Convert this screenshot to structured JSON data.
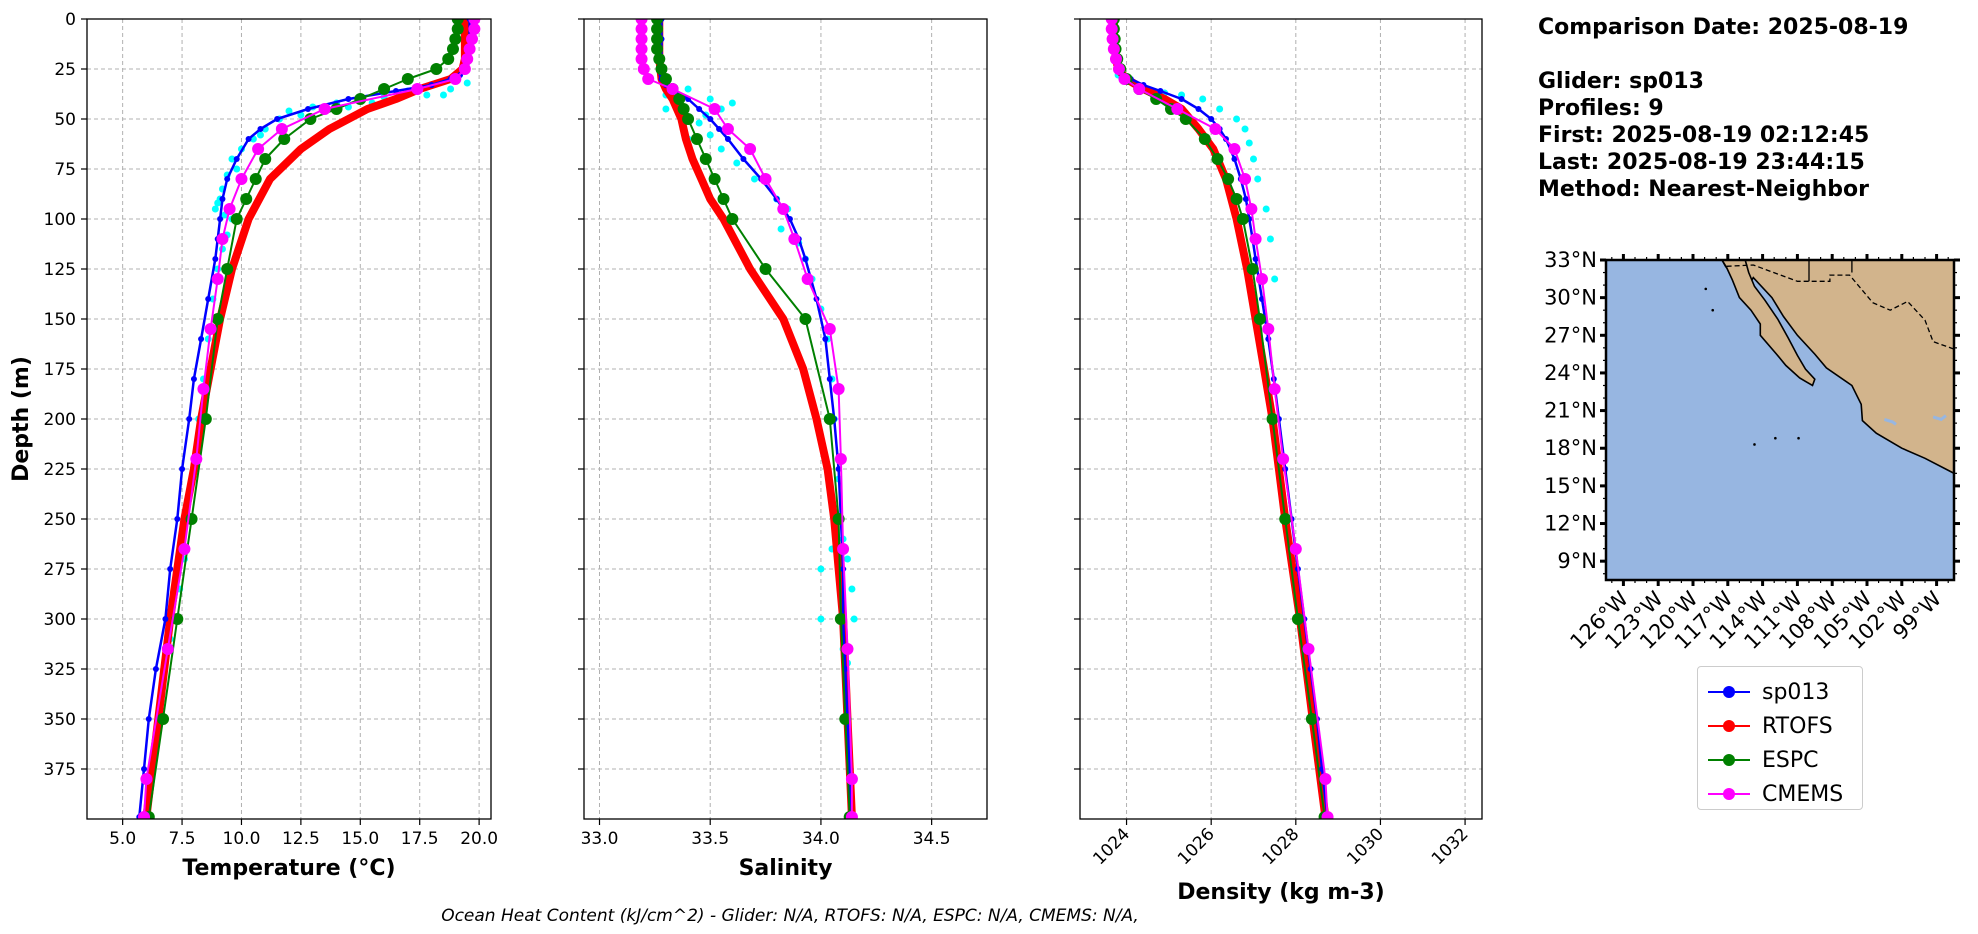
{
  "chart_data": [
    {
      "type": "line",
      "title": "",
      "xlabel": "Temperature (°C)",
      "ylabel": "Depth (m)",
      "xlim": [
        3.5,
        20.5
      ],
      "ylim": [
        400,
        0
      ],
      "xticks": [
        "5.0",
        "7.5",
        "10.0",
        "12.5",
        "15.0",
        "17.5",
        "20.0"
      ],
      "yticks": [
        "0",
        "25",
        "50",
        "75",
        "100",
        "125",
        "150",
        "175",
        "200",
        "225",
        "250",
        "275",
        "300",
        "325",
        "350",
        "375"
      ],
      "grid": true,
      "scatter_cyan": [
        [
          18.5,
          38
        ],
        [
          17.8,
          38
        ],
        [
          16.5,
          40
        ],
        [
          15.5,
          42
        ],
        [
          14,
          42
        ],
        [
          13,
          44
        ],
        [
          12,
          46
        ],
        [
          11.6,
          50
        ],
        [
          11,
          55
        ],
        [
          10.5,
          60
        ],
        [
          10,
          65
        ],
        [
          9.6,
          70
        ],
        [
          9.4,
          78
        ],
        [
          9.2,
          85
        ],
        [
          9,
          92
        ],
        [
          8.9,
          95
        ],
        [
          9.3,
          98
        ],
        [
          9.6,
          100
        ],
        [
          9.4,
          108
        ],
        [
          9.2,
          115
        ],
        [
          9,
          125
        ],
        [
          8.8,
          140
        ],
        [
          8.6,
          160
        ],
        [
          8.4,
          180
        ],
        [
          8.2,
          200
        ],
        [
          8,
          225
        ],
        [
          7.8,
          250
        ],
        [
          7.6,
          270
        ],
        [
          7.4,
          285
        ],
        [
          7.2,
          300
        ],
        [
          7,
          310
        ],
        [
          19,
          30
        ],
        [
          19.5,
          32
        ],
        [
          18.8,
          35
        ],
        [
          17,
          36
        ],
        [
          16,
          39
        ],
        [
          14.5,
          44
        ],
        [
          12.5,
          48
        ],
        [
          10.8,
          58
        ],
        [
          9.8,
          75
        ],
        [
          9.1,
          90
        ]
      ],
      "series": [
        {
          "name": "sp013",
          "color": "#0000ff",
          "depth": [
            0,
            10,
            20,
            25,
            28,
            30,
            33,
            36,
            40,
            45,
            50,
            55,
            60,
            70,
            80,
            90,
            100,
            110,
            120,
            140,
            160,
            180,
            200,
            225,
            250,
            275,
            300,
            325,
            350,
            375,
            399
          ],
          "values": [
            19.6,
            19.6,
            19.6,
            19.5,
            19.2,
            18.8,
            18,
            16.5,
            14.5,
            12.8,
            11.5,
            10.8,
            10.3,
            9.8,
            9.4,
            9.2,
            9.1,
            9,
            8.9,
            8.6,
            8.3,
            8,
            7.8,
            7.5,
            7.3,
            7,
            6.8,
            6.4,
            6.1,
            5.9,
            5.7
          ],
          "lw": 2.5,
          "marker": 6
        },
        {
          "name": "RTOFS",
          "color": "#ff0000",
          "depth": [
            0,
            10,
            20,
            25,
            30,
            35,
            40,
            45,
            55,
            65,
            80,
            100,
            125,
            150,
            175,
            200,
            225,
            250,
            300,
            350,
            399
          ],
          "values": [
            19.4,
            19.4,
            19.4,
            19.3,
            18.8,
            17.5,
            16.5,
            15.3,
            13.7,
            12.5,
            11.2,
            10.3,
            9.6,
            9.1,
            8.7,
            8.3,
            8,
            7.6,
            7,
            6.5,
            6
          ],
          "lw": 8,
          "marker": 0
        },
        {
          "name": "ESPC",
          "color": "#008000",
          "depth": [
            0,
            5,
            10,
            15,
            20,
            25,
            30,
            35,
            40,
            45,
            50,
            60,
            70,
            80,
            90,
            100,
            125,
            150,
            200,
            250,
            300,
            350,
            399
          ],
          "values": [
            19.1,
            19.1,
            19,
            18.9,
            18.7,
            18.2,
            17,
            16,
            15,
            14,
            12.9,
            11.8,
            11,
            10.6,
            10.2,
            9.8,
            9.4,
            9,
            8.5,
            7.9,
            7.3,
            6.7,
            6.1
          ],
          "lw": 2,
          "marker": 12
        },
        {
          "name": "CMEMS",
          "color": "#ff00ff",
          "depth": [
            0,
            5,
            10,
            15,
            20,
            25,
            30,
            35,
            45,
            55,
            65,
            80,
            95,
            110,
            130,
            155,
            185,
            220,
            265,
            315,
            380,
            399
          ],
          "values": [
            19.8,
            19.8,
            19.7,
            19.6,
            19.5,
            19.4,
            19,
            17.4,
            13.5,
            11.7,
            10.7,
            10,
            9.5,
            9.2,
            9,
            8.7,
            8.4,
            8.1,
            7.6,
            6.9,
            6,
            5.9
          ],
          "lw": 2,
          "marker": 12
        }
      ]
    },
    {
      "type": "line",
      "title": "",
      "xlabel": "Salinity",
      "ylabel": "",
      "xlim": [
        32.93,
        34.75
      ],
      "ylim": [
        400,
        0
      ],
      "xticks": [
        "33.0",
        "33.5",
        "34.0",
        "34.5"
      ],
      "grid": true,
      "scatter_cyan": [
        [
          33.3,
          38
        ],
        [
          33.4,
          35
        ],
        [
          33.5,
          40
        ],
        [
          33.6,
          42
        ],
        [
          33.55,
          45
        ],
        [
          33.48,
          48
        ],
        [
          33.45,
          52
        ],
        [
          33.5,
          58
        ],
        [
          33.55,
          65
        ],
        [
          33.62,
          72
        ],
        [
          33.7,
          80
        ],
        [
          33.8,
          90
        ],
        [
          33.85,
          95
        ],
        [
          33.82,
          105
        ],
        [
          33.9,
          112
        ],
        [
          33.93,
          120
        ],
        [
          33.96,
          130
        ],
        [
          34,
          145
        ],
        [
          34.03,
          160
        ],
        [
          34.05,
          180
        ],
        [
          34.06,
          200
        ],
        [
          34.08,
          230
        ],
        [
          34.1,
          260
        ],
        [
          34.12,
          270
        ],
        [
          34,
          275
        ],
        [
          34.14,
          285
        ],
        [
          34.15,
          300
        ],
        [
          34,
          300
        ],
        [
          34.1,
          315
        ],
        [
          34.12,
          322
        ],
        [
          34.05,
          265
        ],
        [
          33.3,
          45
        ],
        [
          33.4,
          60
        ]
      ],
      "series": [
        {
          "name": "sp013",
          "color": "#0000ff",
          "depth": [
            0,
            10,
            20,
            25,
            28,
            30,
            33,
            36,
            40,
            45,
            50,
            55,
            60,
            70,
            80,
            90,
            100,
            110,
            120,
            140,
            160,
            180,
            200,
            225,
            250,
            275,
            300,
            325,
            350,
            375,
            399
          ],
          "values": [
            33.28,
            33.28,
            33.28,
            33.28,
            33.28,
            33.28,
            33.3,
            33.34,
            33.4,
            33.45,
            33.5,
            33.54,
            33.58,
            33.65,
            33.73,
            33.8,
            33.86,
            33.9,
            33.93,
            33.98,
            34.02,
            34.04,
            34.06,
            34.08,
            34.09,
            34.1,
            34.1,
            34.11,
            34.12,
            34.13,
            34.13
          ],
          "lw": 2.5,
          "marker": 6
        },
        {
          "name": "RTOFS",
          "color": "#ff0000",
          "depth": [
            0,
            10,
            20,
            30,
            35,
            40,
            45,
            50,
            55,
            60,
            70,
            80,
            90,
            100,
            125,
            150,
            175,
            200,
            225,
            250,
            300,
            350,
            399
          ],
          "values": [
            33.27,
            33.27,
            33.27,
            33.28,
            33.3,
            33.33,
            33.35,
            33.37,
            33.38,
            33.39,
            33.42,
            33.46,
            33.5,
            33.56,
            33.68,
            33.83,
            33.92,
            33.98,
            34.03,
            34.06,
            34.1,
            34.12,
            34.14
          ],
          "lw": 8,
          "marker": 0
        },
        {
          "name": "ESPC",
          "color": "#008000",
          "depth": [
            0,
            5,
            10,
            15,
            20,
            25,
            30,
            35,
            40,
            45,
            50,
            60,
            70,
            80,
            90,
            100,
            125,
            150,
            200,
            250,
            300,
            350,
            399
          ],
          "values": [
            33.26,
            33.26,
            33.26,
            33.26,
            33.27,
            33.28,
            33.3,
            33.33,
            33.36,
            33.38,
            33.4,
            33.44,
            33.48,
            33.52,
            33.56,
            33.6,
            33.75,
            33.93,
            34.04,
            34.08,
            34.09,
            34.11,
            34.13
          ],
          "lw": 2,
          "marker": 12
        },
        {
          "name": "CMEMS",
          "color": "#ff00ff",
          "depth": [
            0,
            5,
            10,
            15,
            20,
            25,
            30,
            35,
            45,
            55,
            65,
            80,
            95,
            110,
            130,
            155,
            185,
            220,
            265,
            315,
            380,
            399
          ],
          "values": [
            33.19,
            33.19,
            33.19,
            33.19,
            33.19,
            33.2,
            33.22,
            33.33,
            33.52,
            33.58,
            33.68,
            33.75,
            33.83,
            33.88,
            33.94,
            34.04,
            34.08,
            34.09,
            34.1,
            34.12,
            34.14,
            34.14
          ],
          "lw": 2,
          "marker": 12
        }
      ]
    },
    {
      "type": "line",
      "title": "",
      "xlabel": "Density (kg m-3)",
      "ylabel": "",
      "xlim": [
        1022.9,
        1032.4
      ],
      "ylim": [
        400,
        0
      ],
      "xticks": [
        "1024",
        "1026",
        "1028",
        "1030",
        "1032"
      ],
      "grid": true,
      "scatter_cyan": [
        [
          1024,
          30
        ],
        [
          1024.4,
          34
        ],
        [
          1024.9,
          37
        ],
        [
          1025.3,
          38
        ],
        [
          1025.8,
          40
        ],
        [
          1026.2,
          45
        ],
        [
          1026.6,
          50
        ],
        [
          1026.8,
          55
        ],
        [
          1026.9,
          62
        ],
        [
          1027,
          70
        ],
        [
          1027.1,
          80
        ],
        [
          1027.3,
          95
        ],
        [
          1027.4,
          110
        ],
        [
          1027.5,
          130
        ],
        [
          1023.8,
          28
        ]
      ],
      "series": [
        {
          "name": "sp013",
          "color": "#0000ff",
          "depth": [
            0,
            10,
            20,
            25,
            28,
            30,
            33,
            36,
            40,
            45,
            50,
            55,
            60,
            70,
            80,
            90,
            100,
            110,
            120,
            140,
            160,
            180,
            200,
            225,
            250,
            275,
            300,
            325,
            350,
            375,
            399
          ],
          "values": [
            1023.7,
            1023.7,
            1023.7,
            1023.8,
            1023.9,
            1024.1,
            1024.4,
            1024.8,
            1025.3,
            1025.7,
            1026,
            1026.2,
            1026.35,
            1026.55,
            1026.7,
            1026.82,
            1026.9,
            1026.98,
            1027.05,
            1027.2,
            1027.35,
            1027.48,
            1027.6,
            1027.75,
            1027.9,
            1028.05,
            1028.2,
            1028.35,
            1028.5,
            1028.62,
            1028.75
          ],
          "lw": 2.5,
          "marker": 6
        },
        {
          "name": "RTOFS",
          "color": "#ff0000",
          "depth": [
            0,
            10,
            20,
            25,
            30,
            35,
            40,
            45,
            55,
            65,
            80,
            100,
            125,
            150,
            175,
            200,
            225,
            250,
            300,
            350,
            399
          ],
          "values": [
            1023.7,
            1023.7,
            1023.75,
            1023.8,
            1024,
            1024.4,
            1024.9,
            1025.3,
            1025.7,
            1026.05,
            1026.35,
            1026.6,
            1026.85,
            1027.05,
            1027.25,
            1027.45,
            1027.6,
            1027.75,
            1028.1,
            1028.4,
            1028.7
          ],
          "lw": 8,
          "marker": 0
        },
        {
          "name": "ESPC",
          "color": "#008000",
          "depth": [
            0,
            5,
            10,
            15,
            20,
            25,
            30,
            35,
            40,
            45,
            50,
            60,
            70,
            80,
            90,
            100,
            125,
            150,
            200,
            250,
            300,
            350,
            399
          ],
          "values": [
            1023.7,
            1023.7,
            1023.72,
            1023.74,
            1023.78,
            1023.85,
            1024,
            1024.3,
            1024.7,
            1025.05,
            1025.4,
            1025.85,
            1026.15,
            1026.4,
            1026.6,
            1026.75,
            1026.98,
            1027.15,
            1027.45,
            1027.75,
            1028.05,
            1028.38,
            1028.68
          ],
          "lw": 2,
          "marker": 12
        },
        {
          "name": "CMEMS",
          "color": "#ff00ff",
          "depth": [
            0,
            5,
            10,
            15,
            20,
            25,
            30,
            35,
            45,
            55,
            65,
            80,
            95,
            110,
            130,
            155,
            185,
            220,
            265,
            315,
            380,
            399
          ],
          "values": [
            1023.65,
            1023.65,
            1023.67,
            1023.7,
            1023.75,
            1023.82,
            1023.95,
            1024.3,
            1025.2,
            1026.1,
            1026.55,
            1026.8,
            1026.95,
            1027.05,
            1027.2,
            1027.35,
            1027.5,
            1027.7,
            1028,
            1028.3,
            1028.7,
            1028.75
          ],
          "lw": 2,
          "marker": 12
        }
      ]
    }
  ],
  "info_text": "Comparison Date: 2025-08-19\n\nGlider: sp013\nProfiles: 9\nFirst: 2025-08-19 02:12:45\nLast: 2025-08-19 23:44:15\nMethod: Nearest-Neighbor",
  "map": {
    "lat_labels": [
      "33°N",
      "30°N",
      "27°N",
      "24°N",
      "21°N",
      "18°N",
      "15°N",
      "12°N",
      "9°N"
    ],
    "lon_labels": [
      "126°W",
      "123°W",
      "120°W",
      "117°W",
      "114°W",
      "111°W",
      "108°W",
      "105°W",
      "102°W",
      "99°W"
    ],
    "ocean_color": "#97b6e1",
    "land_color": "#d2b48c"
  },
  "legend": [
    {
      "label": "sp013",
      "color": "#0000ff"
    },
    {
      "label": "RTOFS",
      "color": "#ff0000"
    },
    {
      "label": "ESPC",
      "color": "#008000"
    },
    {
      "label": "CMEMS",
      "color": "#ff00ff"
    }
  ],
  "footer": "Ocean Heat Content (kJ/cm^2) - Glider: N/A,  RTOFS: N/A,  ESPC: N/A,  CMEMS: N/A,"
}
